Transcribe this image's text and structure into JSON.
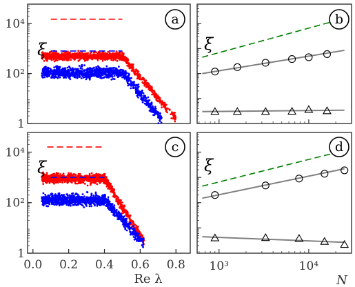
{
  "chart_data": [
    {
      "panel": "a",
      "type": "scatter",
      "ylabel": "ξ",
      "yscale": "log",
      "ylim": [
        1,
        60000
      ],
      "xlim": [
        -0.03,
        0.88
      ],
      "yticks": [
        {
          "value": 1,
          "label": "1"
        },
        {
          "value": 100,
          "label": "10²"
        },
        {
          "value": 10000,
          "label": "10⁴"
        }
      ],
      "series": [
        {
          "color": "#ff0000",
          "plateau": 500,
          "x_start": 0.05,
          "x_knee": 0.5,
          "x_end": 0.8,
          "y_end": 1.5,
          "spread": 0.16
        },
        {
          "color": "#0000ff",
          "plateau": 110,
          "x_start": 0.05,
          "x_knee": 0.5,
          "x_end": 0.72,
          "y_end": 1.5,
          "spread": 0.22
        }
      ],
      "reference_lines": [
        {
          "color": "#ff0000",
          "style": "dashed",
          "y": 15000,
          "x": [
            0.1,
            0.5
          ]
        },
        {
          "color": "#0000ff",
          "style": "dashed",
          "y": 800,
          "x": [
            0.1,
            0.5
          ]
        }
      ]
    },
    {
      "panel": "b",
      "type": "line",
      "ylabel": "ξ",
      "xscale": "log",
      "yscale": "log",
      "xlim": [
        570,
        30000
      ],
      "ylim": [
        1,
        60000
      ],
      "series": [
        {
          "marker": "circle",
          "points": [
            [
              900,
              120
            ],
            [
              1600,
              180
            ],
            [
              3300,
              270
            ],
            [
              6500,
              380
            ],
            [
              10000,
              450
            ],
            [
              16000,
              600
            ]
          ],
          "fit": [
            [
              650,
              100
            ],
            [
              25000,
              850
            ]
          ]
        },
        {
          "marker": "triangle",
          "points": [
            [
              900,
              3.0
            ],
            [
              1600,
              3.0
            ],
            [
              3300,
              3.0
            ],
            [
              6500,
              3.05
            ],
            [
              10000,
              3.6
            ],
            [
              16000,
              3.2
            ]
          ],
          "fit": [
            [
              650,
              3.0
            ],
            [
              25000,
              3.4
            ]
          ]
        }
      ],
      "reference_lines": [
        {
          "color": "#008000",
          "style": "dashed",
          "points": [
            [
              650,
              450
            ],
            [
              20000,
              13000
            ]
          ]
        }
      ]
    },
    {
      "panel": "c",
      "type": "scatter",
      "ylabel": "ξ",
      "yscale": "log",
      "ylim": [
        1,
        60000
      ],
      "xlim": [
        -0.03,
        0.88
      ],
      "xlabel": "Re λ",
      "xticks": [
        0.0,
        0.2,
        0.4,
        0.6,
        0.8
      ],
      "xticklabels": [
        "0.0",
        "0.2",
        "0.4",
        "0.6",
        "0.8"
      ],
      "yticks": [
        {
          "value": 1,
          "label": "1"
        },
        {
          "value": 100,
          "label": "10²"
        },
        {
          "value": 10000,
          "label": "10⁴"
        }
      ],
      "series": [
        {
          "color": "#ff0000",
          "plateau": 900,
          "x_start": 0.05,
          "x_knee": 0.4,
          "x_end": 0.62,
          "y_end": 3,
          "spread": 0.18
        },
        {
          "color": "#0000ff",
          "plateau": 130,
          "x_start": 0.05,
          "x_knee": 0.4,
          "x_end": 0.62,
          "y_end": 2.5,
          "spread": 0.22
        }
      ],
      "reference_lines": [
        {
          "color": "#ff0000",
          "style": "dashed",
          "y": 16000,
          "x": [
            0.08,
            0.4
          ]
        },
        {
          "color": "#0000ff",
          "style": "dashed",
          "y": 1000,
          "x": [
            0.1,
            0.4
          ]
        }
      ]
    },
    {
      "panel": "d",
      "type": "line",
      "ylabel": "ξ",
      "xscale": "log",
      "yscale": "log",
      "xlim": [
        570,
        30000
      ],
      "ylim": [
        1,
        60000
      ],
      "xlabel": "N",
      "xticks": [
        {
          "value": 1000,
          "label": "10³"
        },
        {
          "value": 10000,
          "label": "10⁴"
        }
      ],
      "series": [
        {
          "marker": "circle",
          "points": [
            [
              900,
              200
            ],
            [
              3300,
              480
            ],
            [
              7800,
              900
            ],
            [
              15000,
              1400
            ],
            [
              25000,
              1900
            ]
          ],
          "fit": [
            [
              650,
              150
            ],
            [
              25000,
              2200
            ]
          ]
        },
        {
          "marker": "triangle",
          "points": [
            [
              900,
              4.0
            ],
            [
              3300,
              4.1
            ],
            [
              7800,
              3.8
            ],
            [
              15000,
              2.9
            ],
            [
              25000,
              2.2
            ]
          ],
          "fit": [
            [
              650,
              4.5
            ],
            [
              25000,
              2.7
            ]
          ]
        }
      ],
      "reference_lines": [
        {
          "color": "#008000",
          "style": "dashed",
          "points": [
            [
              650,
              450
            ],
            [
              20000,
              9500
            ]
          ]
        }
      ]
    }
  ]
}
